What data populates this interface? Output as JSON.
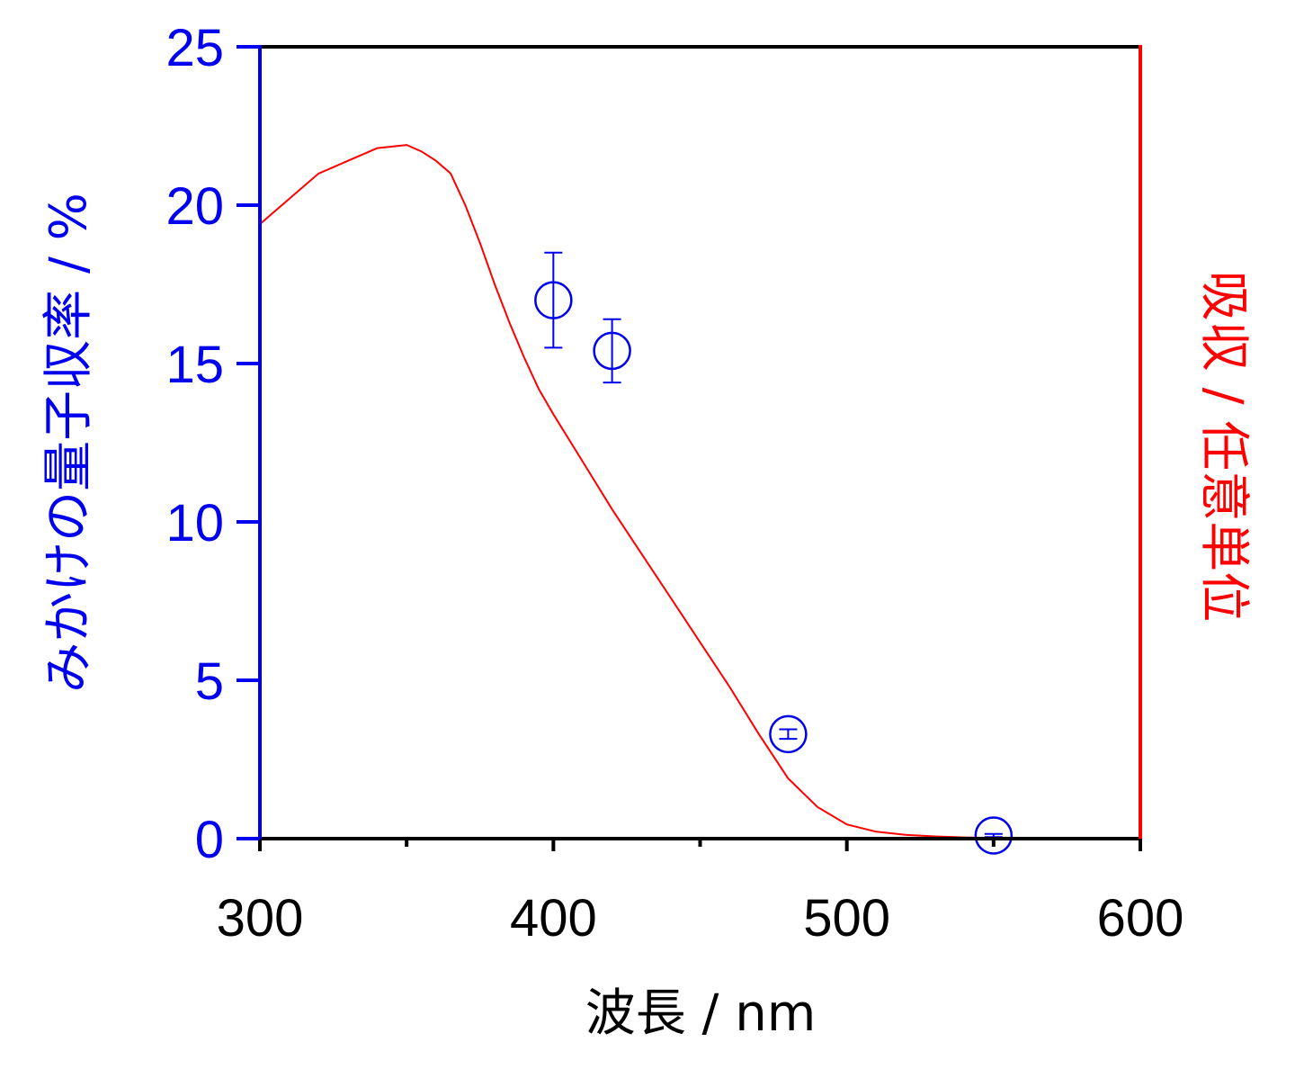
{
  "chart_data": {
    "type": "scatter",
    "xlabel": "波長 / nm",
    "ylabel": "みかけの量子収率 / %",
    "y2label": "吸収 / 任意単位",
    "xlim": [
      300,
      600
    ],
    "ylim": [
      0,
      25
    ],
    "x_ticks": [
      "300",
      "400",
      "500",
      "600"
    ],
    "y_ticks": [
      "0",
      "5",
      "10",
      "15",
      "20",
      "25"
    ],
    "grid": false,
    "legend": "none",
    "colors": {
      "left_axis": "#0000ee",
      "right_axis": "#ff0000",
      "frame": "#000000"
    },
    "series": [
      {
        "kind": "scatter-errorbar",
        "axis": "left",
        "color": "#0000ee",
        "marker": "open-circle",
        "points": [
          {
            "x": 400,
            "y": 17.0,
            "err": 1.5
          },
          {
            "x": 420,
            "y": 15.4,
            "err": 1.0
          },
          {
            "x": 480,
            "y": 3.3,
            "err": 0.15
          },
          {
            "x": 550,
            "y": 0.1,
            "err": 0.05
          }
        ]
      },
      {
        "kind": "line",
        "axis": "right",
        "color": "#ff0000",
        "x": [
          300,
          305,
          310,
          315,
          320,
          325,
          330,
          335,
          340,
          345,
          350,
          355,
          360,
          365,
          370,
          375,
          380,
          385,
          390,
          395,
          400,
          410,
          420,
          430,
          440,
          450,
          460,
          470,
          480,
          490,
          500,
          510,
          520,
          530,
          540,
          550,
          560,
          570,
          580,
          590,
          600
        ],
        "y": [
          19.4,
          19.8,
          20.2,
          20.6,
          21.0,
          21.2,
          21.4,
          21.6,
          21.8,
          21.85,
          21.9,
          21.7,
          21.4,
          21.0,
          20.0,
          18.8,
          17.5,
          16.3,
          15.2,
          14.2,
          13.4,
          11.9,
          10.4,
          9.0,
          7.6,
          6.2,
          4.8,
          3.3,
          1.9,
          1.0,
          0.45,
          0.22,
          0.12,
          0.07,
          0.04,
          0.02,
          0.01,
          0.005,
          0.0,
          0.0,
          0.0
        ]
      }
    ]
  }
}
